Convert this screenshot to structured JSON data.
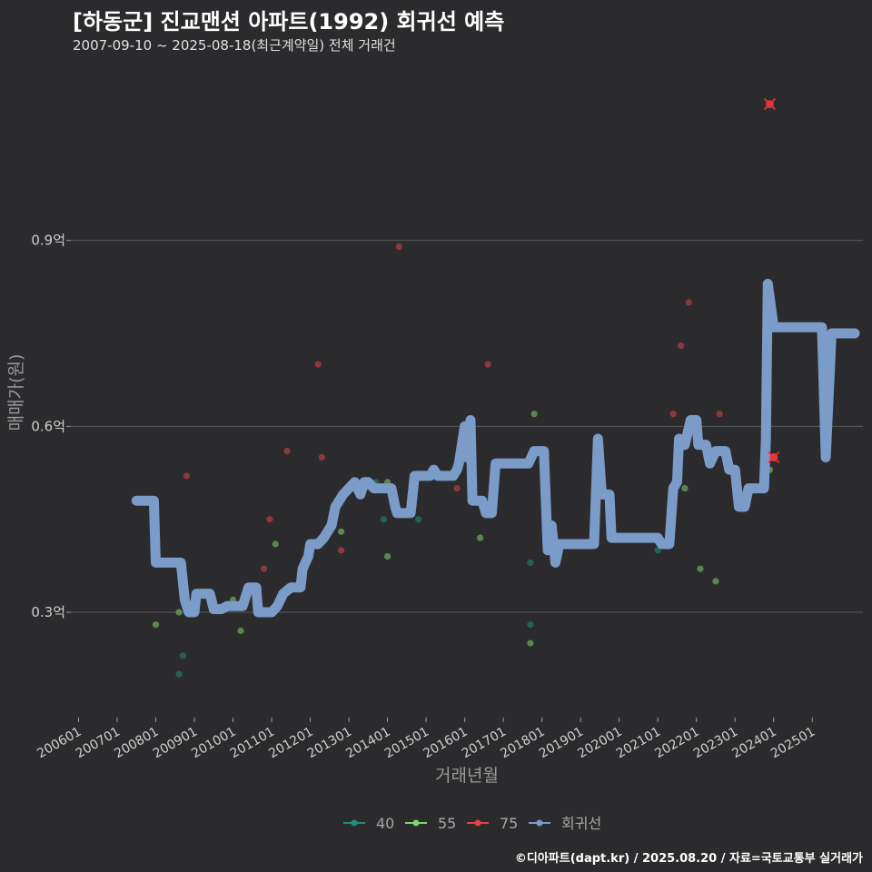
{
  "title": "[하동군] 진교맨션 아파트(1992) 회귀선 예측",
  "subtitle": "2007-09-10 ~ 2025-08-18(최근계약일) 전체 거래건",
  "source": "©디아파트(dapt.kr) / 2025.08.20 / 자료=국토교통부 실거래가",
  "colors": {
    "background": "#2b2b2d",
    "grid": "#5a5a5c",
    "s40": "#1f8f7a",
    "s55": "#7ed36b",
    "s75": "#e0434d",
    "regression": "#7b9bc9"
  },
  "chart_data": {
    "type": "scatter",
    "xlabel": "거래년월",
    "ylabel": "매매가(원)",
    "xlim": [
      2005.8,
      2026.5
    ],
    "ylim": [
      0.13,
      1.2
    ],
    "x_ticks": [
      "200601",
      "200701",
      "200801",
      "200901",
      "201001",
      "201101",
      "201201",
      "201301",
      "201401",
      "201501",
      "201601",
      "201701",
      "201801",
      "201901",
      "202001",
      "202101",
      "202201",
      "202301",
      "202401",
      "202501"
    ],
    "y_ticks": [
      {
        "label": "0.3억",
        "value": 0.3
      },
      {
        "label": "0.6억",
        "value": 0.6
      },
      {
        "label": "0.9억",
        "value": 0.9
      }
    ],
    "legend": [
      {
        "name": "40",
        "key": "s40"
      },
      {
        "name": "55",
        "key": "s55"
      },
      {
        "name": "75",
        "key": "s75"
      },
      {
        "name": "회귀선",
        "key": "regression"
      }
    ],
    "series": [
      {
        "name": "40",
        "points": [
          [
            2008.6,
            0.2
          ],
          [
            2008.7,
            0.23
          ],
          [
            2013.7,
            0.51
          ],
          [
            2013.9,
            0.45
          ],
          [
            2014.2,
            0.46
          ],
          [
            2014.8,
            0.45
          ],
          [
            2017.7,
            0.28
          ],
          [
            2017.7,
            0.38
          ],
          [
            2021.0,
            0.4
          ]
        ]
      },
      {
        "name": "55",
        "points": [
          [
            2008.0,
            0.28
          ],
          [
            2008.6,
            0.3
          ],
          [
            2009.9,
            0.31
          ],
          [
            2010.0,
            0.32
          ],
          [
            2010.2,
            0.27
          ],
          [
            2011.1,
            0.41
          ],
          [
            2011.2,
            0.32
          ],
          [
            2012.7,
            0.48
          ],
          [
            2012.8,
            0.43
          ],
          [
            2013.2,
            0.5
          ],
          [
            2014.0,
            0.39
          ],
          [
            2014.0,
            0.51
          ],
          [
            2014.05,
            0.5
          ],
          [
            2016.4,
            0.42
          ],
          [
            2017.7,
            0.25
          ],
          [
            2017.8,
            0.62
          ],
          [
            2018.1,
            0.55
          ],
          [
            2021.7,
            0.5
          ],
          [
            2022.1,
            0.37
          ],
          [
            2022.5,
            0.35
          ],
          [
            2023.9,
            0.53
          ]
        ]
      },
      {
        "name": "75",
        "points": [
          [
            2007.7,
            0.48
          ],
          [
            2008.8,
            0.52
          ],
          [
            2010.8,
            0.37
          ],
          [
            2010.95,
            0.45
          ],
          [
            2011.4,
            0.56
          ],
          [
            2012.2,
            0.7
          ],
          [
            2012.3,
            0.55
          ],
          [
            2012.8,
            0.4
          ],
          [
            2014.3,
            0.89
          ],
          [
            2015.8,
            0.5
          ],
          [
            2016.6,
            0.7
          ],
          [
            2021.4,
            0.62
          ],
          [
            2021.6,
            0.73
          ],
          [
            2021.8,
            0.8
          ],
          [
            2022.6,
            0.62
          ],
          [
            2024.0,
            0.55
          ]
        ]
      }
    ],
    "highlighted": [
      [
        2023.9,
        1.12
      ],
      [
        2024.0,
        0.55
      ]
    ],
    "regression": [
      [
        2007.5,
        0.48
      ],
      [
        2007.7,
        0.48
      ],
      [
        2007.75,
        0.48
      ],
      [
        2007.95,
        0.48
      ],
      [
        2008.0,
        0.38
      ],
      [
        2008.65,
        0.38
      ],
      [
        2008.75,
        0.32
      ],
      [
        2008.85,
        0.3
      ],
      [
        2009.0,
        0.3
      ],
      [
        2009.05,
        0.33
      ],
      [
        2009.4,
        0.33
      ],
      [
        2009.5,
        0.305
      ],
      [
        2009.7,
        0.305
      ],
      [
        2009.85,
        0.31
      ],
      [
        2010.1,
        0.31
      ],
      [
        2010.25,
        0.31
      ],
      [
        2010.4,
        0.34
      ],
      [
        2010.6,
        0.34
      ],
      [
        2010.65,
        0.3
      ],
      [
        2011.0,
        0.3
      ],
      [
        2011.15,
        0.31
      ],
      [
        2011.3,
        0.33
      ],
      [
        2011.5,
        0.34
      ],
      [
        2011.75,
        0.34
      ],
      [
        2011.8,
        0.37
      ],
      [
        2011.95,
        0.39
      ],
      [
        2012.0,
        0.41
      ],
      [
        2012.2,
        0.41
      ],
      [
        2012.35,
        0.42
      ],
      [
        2012.45,
        0.43
      ],
      [
        2012.55,
        0.44
      ],
      [
        2012.65,
        0.47
      ],
      [
        2012.75,
        0.48
      ],
      [
        2012.85,
        0.49
      ],
      [
        2013.0,
        0.5
      ],
      [
        2013.15,
        0.51
      ],
      [
        2013.3,
        0.49
      ],
      [
        2013.4,
        0.51
      ],
      [
        2013.5,
        0.51
      ],
      [
        2013.65,
        0.5
      ],
      [
        2014.1,
        0.5
      ],
      [
        2014.2,
        0.47
      ],
      [
        2014.25,
        0.46
      ],
      [
        2014.6,
        0.46
      ],
      [
        2014.7,
        0.52
      ],
      [
        2015.1,
        0.52
      ],
      [
        2015.2,
        0.53
      ],
      [
        2015.3,
        0.52
      ],
      [
        2015.7,
        0.52
      ],
      [
        2015.8,
        0.53
      ],
      [
        2015.85,
        0.54
      ],
      [
        2016.0,
        0.6
      ],
      [
        2016.05,
        0.55
      ],
      [
        2016.15,
        0.61
      ],
      [
        2016.2,
        0.48
      ],
      [
        2016.45,
        0.48
      ],
      [
        2016.55,
        0.46
      ],
      [
        2016.7,
        0.46
      ],
      [
        2016.8,
        0.54
      ],
      [
        2017.65,
        0.54
      ],
      [
        2017.8,
        0.56
      ],
      [
        2018.05,
        0.56
      ],
      [
        2018.15,
        0.4
      ],
      [
        2018.25,
        0.44
      ],
      [
        2018.35,
        0.38
      ],
      [
        2018.45,
        0.41
      ],
      [
        2019.35,
        0.41
      ],
      [
        2019.45,
        0.58
      ],
      [
        2019.55,
        0.49
      ],
      [
        2019.75,
        0.49
      ],
      [
        2019.8,
        0.42
      ],
      [
        2021.0,
        0.42
      ],
      [
        2021.1,
        0.41
      ],
      [
        2021.3,
        0.41
      ],
      [
        2021.4,
        0.5
      ],
      [
        2021.5,
        0.51
      ],
      [
        2021.55,
        0.58
      ],
      [
        2021.7,
        0.57
      ],
      [
        2021.85,
        0.61
      ],
      [
        2022.0,
        0.61
      ],
      [
        2022.05,
        0.57
      ],
      [
        2022.25,
        0.57
      ],
      [
        2022.35,
        0.54
      ],
      [
        2022.5,
        0.56
      ],
      [
        2022.75,
        0.56
      ],
      [
        2022.85,
        0.53
      ],
      [
        2023.0,
        0.53
      ],
      [
        2023.1,
        0.47
      ],
      [
        2023.25,
        0.47
      ],
      [
        2023.35,
        0.5
      ],
      [
        2023.75,
        0.5
      ],
      [
        2023.8,
        0.58
      ],
      [
        2023.85,
        0.83
      ],
      [
        2024.0,
        0.76
      ],
      [
        2025.25,
        0.76
      ],
      [
        2025.35,
        0.55
      ],
      [
        2025.5,
        0.75
      ],
      [
        2026.1,
        0.75
      ]
    ]
  }
}
